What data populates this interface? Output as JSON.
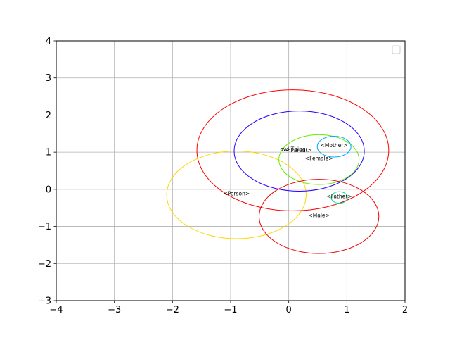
{
  "chart_data": {
    "type": "scatter",
    "title": "",
    "xlabel": "",
    "ylabel": "",
    "xlim": [
      -4,
      2
    ],
    "ylim": [
      -3,
      4
    ],
    "xticks": [
      -4,
      -3,
      -2,
      -1,
      0,
      1,
      2
    ],
    "yticks": [
      -3,
      -2,
      -1,
      0,
      1,
      2,
      3,
      4
    ],
    "grid": true,
    "legend": {
      "placement": "top-right",
      "entries": []
    },
    "ellipses": [
      {
        "label": "<Person>",
        "cx": -0.9,
        "cy": -0.15,
        "rx": 1.2,
        "ry": 1.18,
        "color": "#ffd700",
        "label_x": -0.9,
        "label_y": -0.12
      },
      {
        "label": "owl:Thing",
        "cx": 0.07,
        "cy": 1.05,
        "rx": 1.65,
        "ry": 1.63,
        "color": "#ff0000",
        "label_x": 0.07,
        "label_y": 1.08
      },
      {
        "label": "<Parent>",
        "cx": 0.18,
        "cy": 1.03,
        "rx": 1.12,
        "ry": 1.08,
        "color": "#2200ff",
        "label_x": 0.18,
        "label_y": 1.05
      },
      {
        "label": "<Female>",
        "cx": 0.52,
        "cy": 0.8,
        "rx": 0.69,
        "ry": 0.67,
        "color": "#66ee00",
        "label_x": 0.52,
        "label_y": 0.83
      },
      {
        "label": "<Mother>",
        "cx": 0.78,
        "cy": 1.15,
        "rx": 0.29,
        "ry": 0.28,
        "color": "#00aaff",
        "label_x": 0.78,
        "label_y": 1.18
      },
      {
        "label": "<Male>",
        "cx": 0.52,
        "cy": -0.73,
        "rx": 1.03,
        "ry": 1.0,
        "color": "#ee0000",
        "label_x": 0.52,
        "label_y": -0.7
      },
      {
        "label": "<Father>",
        "cx": 0.87,
        "cy": -0.22,
        "rx": 0.14,
        "ry": 0.155,
        "color": "#00dd88",
        "label_x": 0.87,
        "label_y": -0.19
      }
    ]
  }
}
